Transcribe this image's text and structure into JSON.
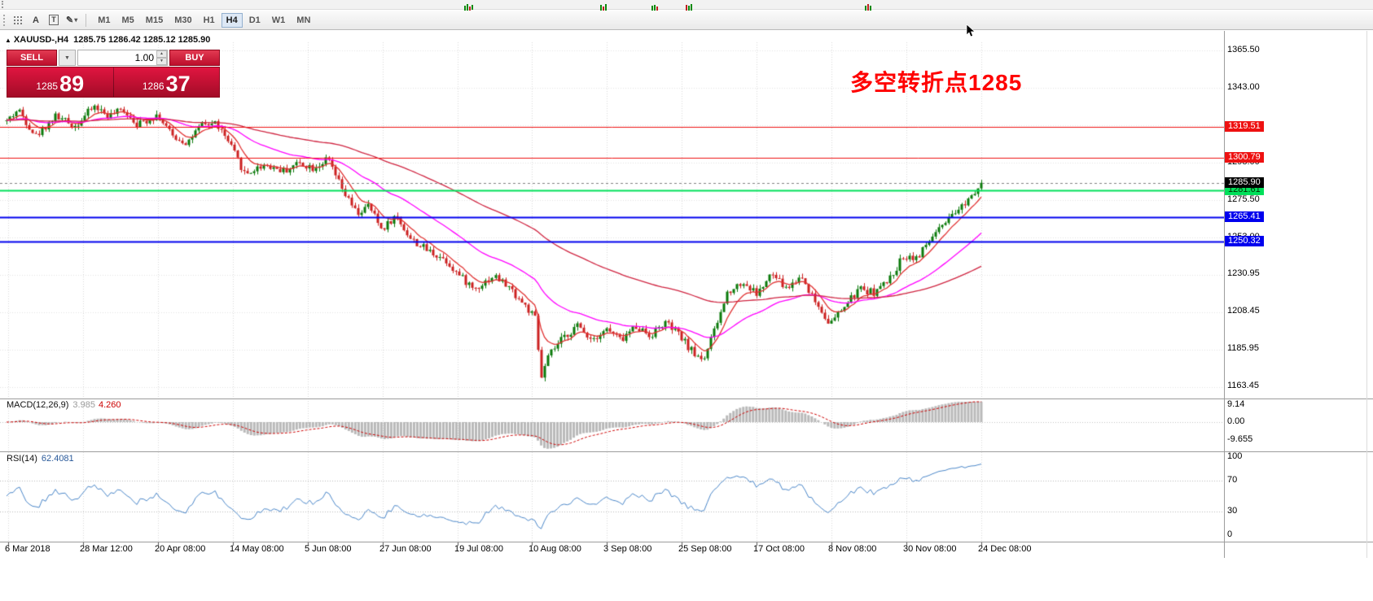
{
  "toolbar": {
    "tool_a": "A",
    "tool_t": "T",
    "timeframes": [
      "M1",
      "M5",
      "M15",
      "M30",
      "H1",
      "H4",
      "D1",
      "W1",
      "MN"
    ],
    "active_timeframe": "H4"
  },
  "chart": {
    "symbol": "XAUUSD-,H4",
    "ohlc": "1285.75 1286.42 1285.12 1285.90"
  },
  "trade_panel": {
    "sell": "SELL",
    "buy": "BUY",
    "lot": "1.00",
    "bid": {
      "small": "1285",
      "big": "89"
    },
    "ask": {
      "small": "1286",
      "big": "37"
    }
  },
  "annotation": {
    "text": "多空转折点1285",
    "color": "#ff0000"
  },
  "chart_data": {
    "type": "candlestick",
    "symbol": "XAUUSD",
    "timeframe": "H4",
    "ohlc_display": {
      "open": "1285.75",
      "high": "1286.42",
      "low": "1285.12",
      "close": "1285.90"
    },
    "y_axis": {
      "ticks": [
        {
          "label": "1365.50",
          "price": 1365.5
        },
        {
          "label": "1343.00",
          "price": 1343.0
        },
        {
          "label": "1298.00",
          "price": 1298.0
        },
        {
          "label": "1275.50",
          "price": 1275.5
        },
        {
          "label": "1253.00",
          "price": 1253.0
        },
        {
          "label": "1230.95",
          "price": 1230.95
        },
        {
          "label": "1208.45",
          "price": 1208.45
        },
        {
          "label": "1185.95",
          "price": 1185.95
        },
        {
          "label": "1163.45",
          "price": 1163.45
        }
      ],
      "gridline_prices": [
        1365.5,
        1343.0,
        1320.5,
        1298.0,
        1275.5,
        1253.0,
        1230.5,
        1208.0,
        1185.5,
        1163.0
      ]
    },
    "price_lines": [
      {
        "label": "1319.51",
        "price": 1319.51,
        "color": "#ee1111",
        "text_color": "#ffffff",
        "width": 1
      },
      {
        "label": "1300.79",
        "price": 1300.79,
        "color": "#ee1111",
        "text_color": "#ffffff",
        "width": 1
      },
      {
        "label": "1281.61",
        "price": 1281.61,
        "color": "#00e05a",
        "text_color": "#003300",
        "width": 2
      },
      {
        "label": "1265.41",
        "price": 1265.41,
        "color": "#0000ee",
        "text_color": "#ffffff",
        "width": 2
      },
      {
        "label": "1250.32",
        "price": 1250.32,
        "color": "#0000ee",
        "text_color": "#ffffff",
        "width": 2
      }
    ],
    "current_price": {
      "label": "1285.90",
      "price": 1285.9,
      "color": "#000000",
      "text_color": "#ffffff"
    },
    "x_axis": {
      "labels": [
        "6 Mar 2018",
        "28 Mar 12:00",
        "20 Apr 08:00",
        "14 May 08:00",
        "5 Jun 08:00",
        "27 Jun 08:00",
        "19 Jul 08:00",
        "10 Aug 08:00",
        "3 Sep 08:00",
        "25 Sep 08:00",
        "17 Oct 08:00",
        "8 Nov 08:00",
        "30 Nov 08:00",
        "24 Dec 08:00"
      ]
    },
    "candles": {
      "count": 300,
      "seed": 42,
      "volatility": 4.5,
      "up_color": "#0b7a0b",
      "down_color": "#cc2020",
      "anchors": [
        [
          0.0,
          1323
        ],
        [
          0.012,
          1330
        ],
        [
          0.03,
          1314
        ],
        [
          0.05,
          1326
        ],
        [
          0.07,
          1320
        ],
        [
          0.09,
          1332
        ],
        [
          0.105,
          1326
        ],
        [
          0.12,
          1330
        ],
        [
          0.135,
          1321
        ],
        [
          0.155,
          1327
        ],
        [
          0.17,
          1314
        ],
        [
          0.185,
          1310
        ],
        [
          0.2,
          1320
        ],
        [
          0.215,
          1322
        ],
        [
          0.23,
          1308
        ],
        [
          0.245,
          1291
        ],
        [
          0.265,
          1297
        ],
        [
          0.285,
          1293
        ],
        [
          0.3,
          1298
        ],
        [
          0.315,
          1295
        ],
        [
          0.33,
          1300
        ],
        [
          0.345,
          1281
        ],
        [
          0.36,
          1267
        ],
        [
          0.372,
          1272
        ],
        [
          0.385,
          1258
        ],
        [
          0.4,
          1266
        ],
        [
          0.415,
          1252
        ],
        [
          0.43,
          1246
        ],
        [
          0.45,
          1240
        ],
        [
          0.465,
          1230
        ],
        [
          0.48,
          1222
        ],
        [
          0.5,
          1230
        ],
        [
          0.515,
          1223
        ],
        [
          0.53,
          1213
        ],
        [
          0.542,
          1204
        ],
        [
          0.548,
          1168
        ],
        [
          0.556,
          1182
        ],
        [
          0.57,
          1192
        ],
        [
          0.585,
          1200
        ],
        [
          0.6,
          1192
        ],
        [
          0.615,
          1198
        ],
        [
          0.63,
          1191
        ],
        [
          0.645,
          1200
        ],
        [
          0.66,
          1194
        ],
        [
          0.675,
          1202
        ],
        [
          0.69,
          1194
        ],
        [
          0.705,
          1183
        ],
        [
          0.715,
          1180
        ],
        [
          0.728,
          1200
        ],
        [
          0.74,
          1221
        ],
        [
          0.755,
          1226
        ],
        [
          0.77,
          1219
        ],
        [
          0.785,
          1231
        ],
        [
          0.8,
          1222
        ],
        [
          0.815,
          1230
        ],
        [
          0.83,
          1214
        ],
        [
          0.845,
          1201
        ],
        [
          0.86,
          1212
        ],
        [
          0.875,
          1222
        ],
        [
          0.89,
          1220
        ],
        [
          0.905,
          1227
        ],
        [
          0.92,
          1242
        ],
        [
          0.935,
          1241
        ],
        [
          0.95,
          1254
        ],
        [
          0.965,
          1262
        ],
        [
          0.98,
          1272
        ],
        [
          0.99,
          1279
        ],
        [
          1.0,
          1285.9
        ]
      ]
    },
    "moving_averages": [
      {
        "period": 8,
        "color": "#e03131"
      },
      {
        "period": 34,
        "color": "#ff00ff"
      },
      {
        "period": 100,
        "color": "#cf2440"
      }
    ],
    "macd": {
      "title": "MACD(12,26,9)",
      "value_main": "3.985",
      "value_signal": "4.260",
      "hist_color": "#b9b9b9",
      "signal_color": "#cc0000",
      "axis": [
        {
          "label": "9.14",
          "value": 9.14
        },
        {
          "label": "0.00",
          "value": 0.0
        },
        {
          "label": "-9.655",
          "value": -9.655
        }
      ]
    },
    "rsi": {
      "title": "RSI(14)",
      "value": "62.4081",
      "color": "#4a86c8",
      "levels": [
        70,
        30
      ],
      "axis": [
        {
          "label": "100",
          "value": 100
        },
        {
          "label": "70",
          "value": 70
        },
        {
          "label": "30",
          "value": 30
        },
        {
          "label": "0",
          "value": 0
        }
      ]
    }
  }
}
